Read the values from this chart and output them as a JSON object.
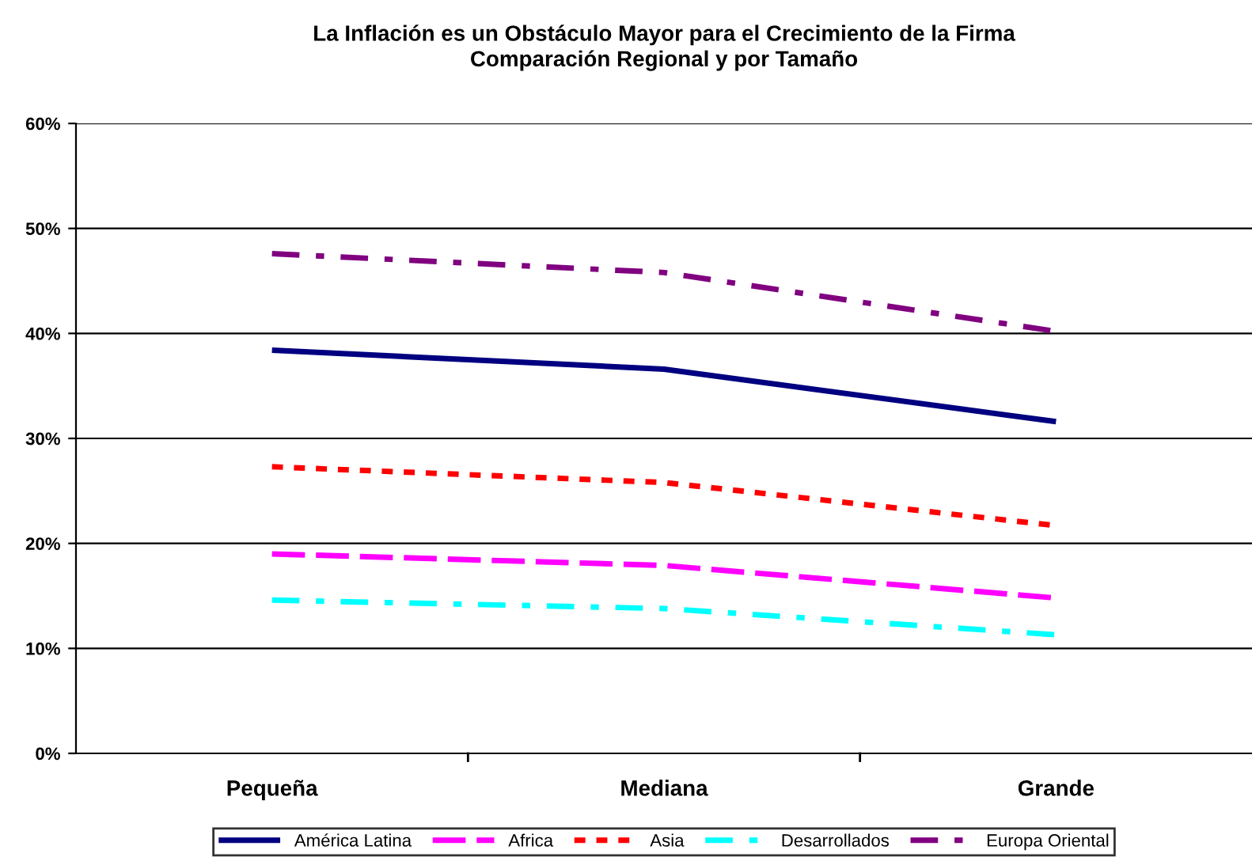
{
  "chart_data": {
    "type": "line",
    "title": "La Inflación es un Obstáculo Mayor para el Crecimiento de la Firma\nComparación Regional y por Tamaño",
    "categories": [
      "Pequeña",
      "Mediana",
      "Grande"
    ],
    "series": [
      {
        "name": "América Latina",
        "color": "#000080",
        "values": [
          38.4,
          36.6,
          31.6
        ],
        "line_style": "solid"
      },
      {
        "name": "Africa",
        "color": "#ff00ff",
        "values": [
          19.0,
          17.9,
          14.8
        ],
        "line_style": "dashed"
      },
      {
        "name": "Asia",
        "color": "#ff0000",
        "values": [
          27.3,
          25.8,
          21.7
        ],
        "line_style": "dotted"
      },
      {
        "name": "Desarrollados",
        "color": "#00ffff",
        "values": [
          14.6,
          13.8,
          11.3
        ],
        "line_style": "dashdot"
      },
      {
        "name": "Europa Oriental",
        "color": "#800080",
        "values": [
          47.6,
          45.8,
          40.2
        ],
        "line_style": "dashdot"
      }
    ],
    "ylim": [
      0,
      60
    ],
    "yticks": [
      {
        "value": 0,
        "label": "0%"
      },
      {
        "value": 10,
        "label": "10%"
      },
      {
        "value": 20,
        "label": "20%"
      },
      {
        "value": 30,
        "label": "30%"
      },
      {
        "value": 40,
        "label": "40%"
      },
      {
        "value": 50,
        "label": "50%"
      },
      {
        "value": 60,
        "label": "60%"
      }
    ],
    "grid": "y",
    "legend": "bottom",
    "marker": "none"
  }
}
